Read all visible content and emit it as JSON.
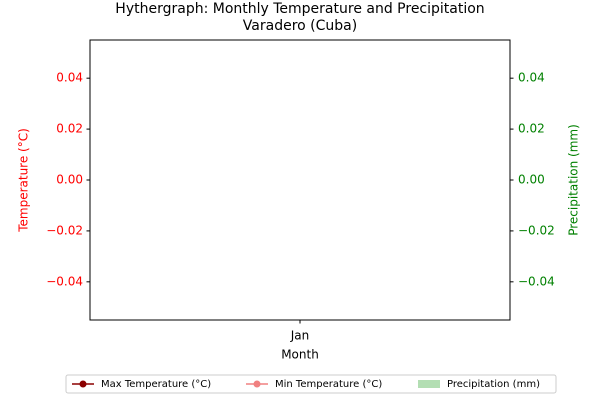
{
  "chart_data": {
    "type": "hythergraph",
    "title": "Hythergraph: Monthly Temperature and Precipitation",
    "subtitle": "Varadero (Cuba)",
    "x_label": "Month",
    "y_label": "Temperature (°C)",
    "y2_label": "Precipitation (mm)",
    "categories": [
      "Jan"
    ],
    "series": [
      {
        "name": "Max Temperature (°C)",
        "type": "line",
        "color": "#8b0000",
        "values": [
          null
        ]
      },
      {
        "name": "Min Temperature (°C)",
        "type": "line",
        "color": "#f08080",
        "values": [
          null
        ]
      },
      {
        "name": "Precipitation (mm)",
        "type": "bar",
        "axis": "y2",
        "color": "#b3deb3",
        "values": [
          null
        ]
      }
    ],
    "ylim": [
      -0.055,
      0.055
    ],
    "yticks": [
      {
        "value": -0.04,
        "label": "−0.04"
      },
      {
        "value": -0.02,
        "label": "−0.02"
      },
      {
        "value": 0,
        "label": "0.00"
      },
      0.02,
      0.04
    ],
    "y_color": "#ff0000",
    "y2lim": [
      -0.055,
      0.055
    ],
    "y2ticks": [
      {
        "value": -0.04,
        "label": "−0.04"
      },
      {
        "value": -0.02,
        "label": "−0.02"
      },
      {
        "value": 0,
        "label": "0.00"
      },
      0.02,
      0.04
    ],
    "y2_color": "#008000",
    "legend": "bottom"
  }
}
